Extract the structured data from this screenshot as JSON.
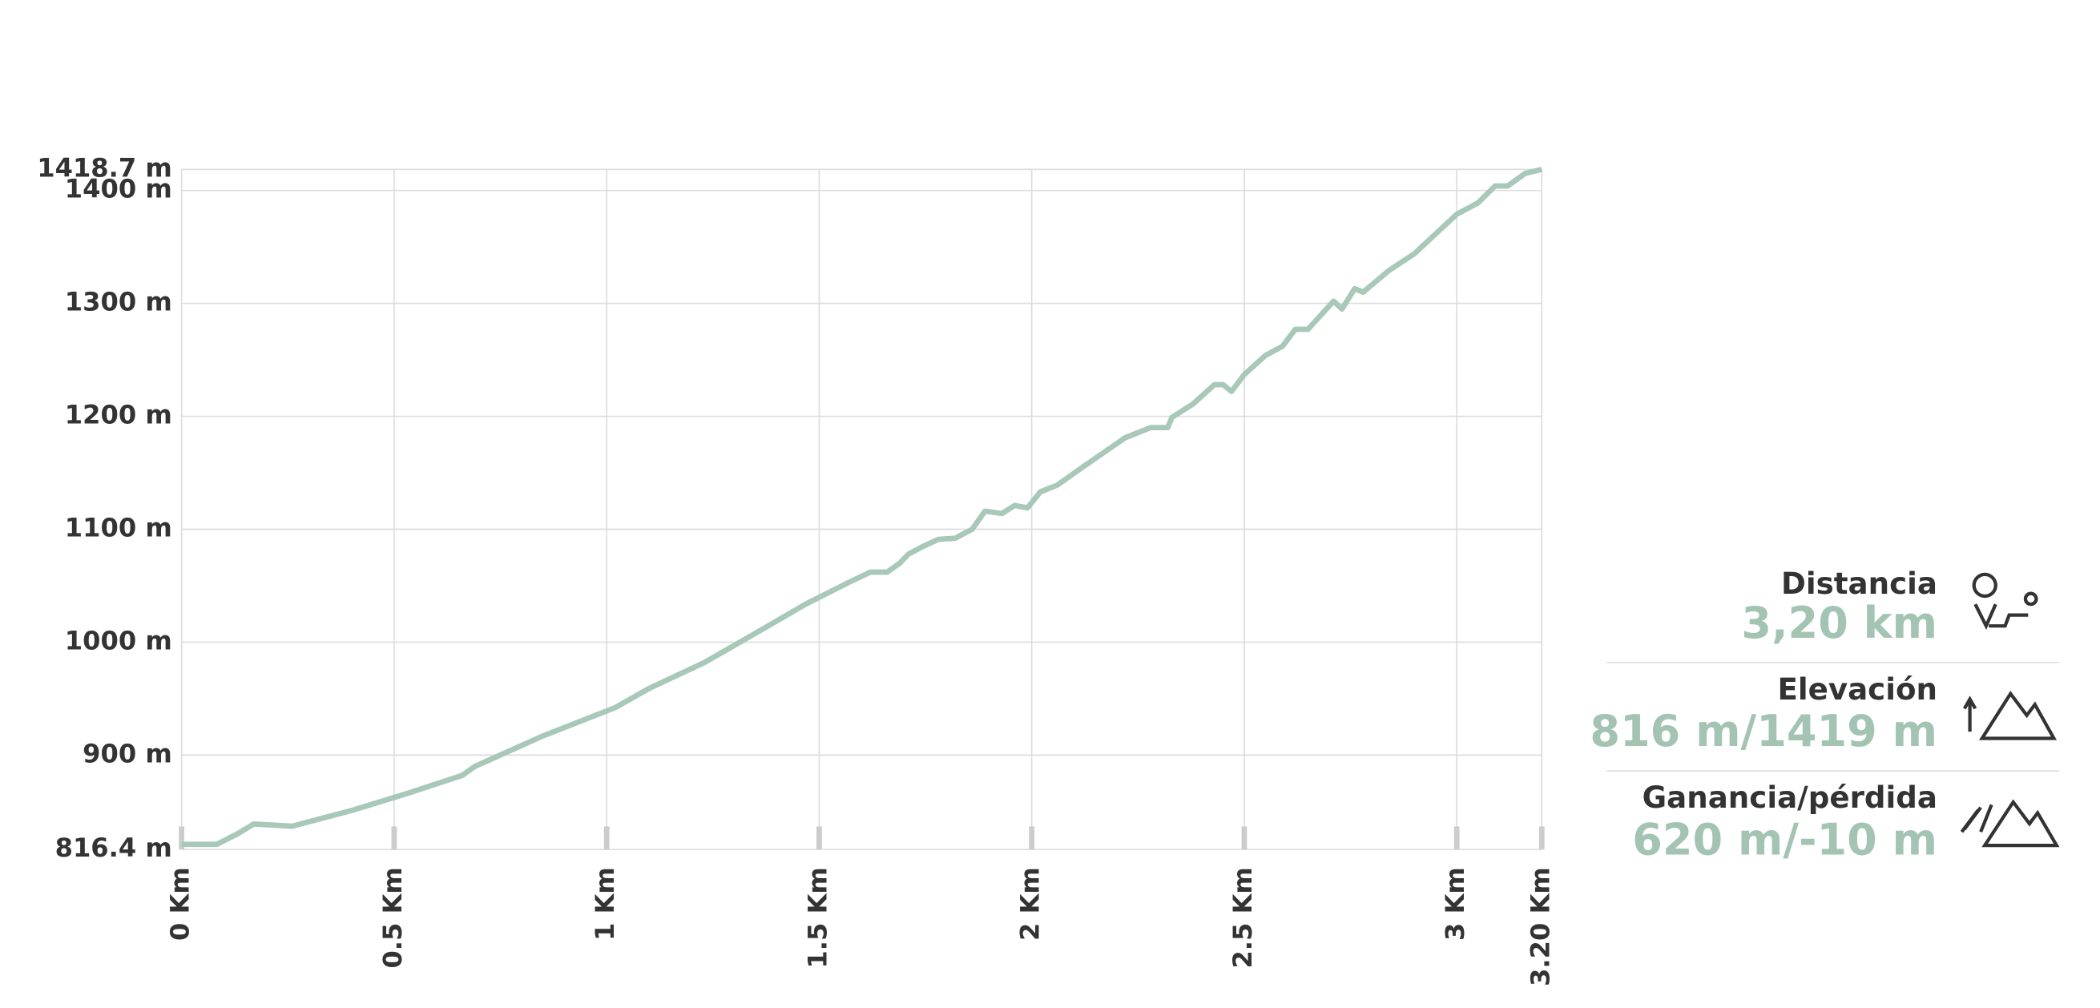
{
  "chart_data": {
    "type": "line",
    "color": "#a8c8b8",
    "x": [
      0,
      0.083,
      0.13,
      0.17,
      0.26,
      0.4,
      0.53,
      0.66,
      0.69,
      0.85,
      1.02,
      1.1,
      1.23,
      1.36,
      1.47,
      1.57,
      1.62,
      1.66,
      1.69,
      1.71,
      1.74,
      1.78,
      1.82,
      1.86,
      1.89,
      1.93,
      1.96,
      1.99,
      2.02,
      2.06,
      2.12,
      2.22,
      2.28,
      2.32,
      2.33,
      2.38,
      2.43,
      2.45,
      2.47,
      2.5,
      2.55,
      2.59,
      2.62,
      2.65,
      2.71,
      2.73,
      2.76,
      2.78,
      2.84,
      2.9,
      3.0,
      3.05,
      3.09,
      3.12,
      3.16,
      3.2
    ],
    "values": [
      821,
      821,
      830,
      839,
      837,
      851,
      866,
      882,
      890,
      917,
      942,
      959,
      982,
      1010,
      1034,
      1053,
      1062,
      1062,
      1070,
      1078,
      1084,
      1091,
      1092,
      1100,
      1116,
      1114,
      1121,
      1119,
      1133,
      1139,
      1155,
      1181,
      1190,
      1190,
      1199,
      1211,
      1228,
      1228,
      1222,
      1237,
      1254,
      1262,
      1277,
      1277,
      1302,
      1295,
      1313,
      1310,
      1329,
      1344,
      1379,
      1389,
      1404,
      1404,
      1415,
      1418.7
    ],
    "xlim": [
      0,
      3.2
    ],
    "xticks": [
      {
        "value": 0,
        "label": "0 Km"
      },
      {
        "value": 0.5,
        "label": "0.5 Km"
      },
      {
        "value": 1,
        "label": "1 Km"
      },
      {
        "value": 1.5,
        "label": "1.5 Km"
      },
      {
        "value": 2,
        "label": "2 Km"
      },
      {
        "value": 2.5,
        "label": "2.5 Km"
      },
      {
        "value": 3,
        "label": "3 Km"
      },
      {
        "value": 3.2,
        "label": "3.20 Km"
      }
    ],
    "ylim": [
      816.4,
      1418.7
    ],
    "yticks": [
      {
        "value": 816.4,
        "label": "816.4 m"
      },
      {
        "value": 900,
        "label": "900 m"
      },
      {
        "value": 1000,
        "label": "1000 m"
      },
      {
        "value": 1100,
        "label": "1100 m"
      },
      {
        "value": 1200,
        "label": "1200 m"
      },
      {
        "value": 1300,
        "label": "1300 m"
      },
      {
        "value": 1400,
        "label": "1400 m"
      },
      {
        "value": 1418.7,
        "label": "1418.7 m"
      }
    ],
    "grid": true
  },
  "stats": [
    {
      "label": "Distancia",
      "value": "3,20 km"
    },
    {
      "label": "Elevación",
      "value": "816 m/1419 m"
    },
    {
      "label": "Ganancia/pérdida",
      "value": "620 m/-10 m"
    }
  ]
}
